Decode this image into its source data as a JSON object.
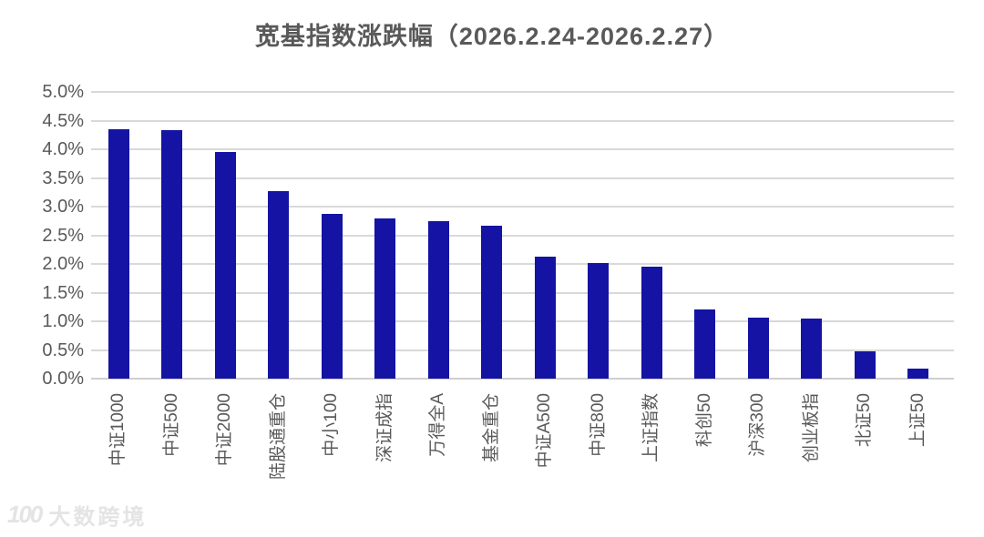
{
  "title": "宽基指数涨跌幅（2026.2.24-2026.2.27）",
  "watermark": {
    "logo_text": "100",
    "text": "大数跨境"
  },
  "colors": {
    "bar": "#1413a3",
    "gridline": "#d9d9d9",
    "axis_text": "#595959",
    "title_text": "#595959",
    "watermark_text": "#e4e4e4",
    "background": "#ffffff"
  },
  "chart_data": {
    "type": "bar",
    "title": "宽基指数涨跌幅（2026.2.24-2026.2.27）",
    "xlabel": "",
    "ylabel": "",
    "unit": "%",
    "categories": [
      "中证1000",
      "中证500",
      "中证2000",
      "陆股通重仓",
      "中小100",
      "深证成指",
      "万得全A",
      "基金重仓",
      "中证A500",
      "中证800",
      "上证指数",
      "科创50",
      "沪深300",
      "创业板指",
      "北证50",
      "上证50"
    ],
    "values": [
      4.35,
      4.33,
      3.95,
      3.27,
      2.87,
      2.8,
      2.75,
      2.66,
      2.12,
      2.02,
      1.96,
      1.2,
      1.07,
      1.04,
      0.48,
      0.17
    ],
    "ylim": [
      0,
      5
    ],
    "ytick_values": [
      0,
      0.5,
      1.0,
      1.5,
      2.0,
      2.5,
      3.0,
      3.5,
      4.0,
      4.5,
      5.0
    ],
    "ytick_labels": [
      "0.0%",
      "0.5%",
      "1.0%",
      "1.5%",
      "2.0%",
      "2.5%",
      "3.0%",
      "3.5%",
      "4.0%",
      "4.5%",
      "5.0%"
    ],
    "grid": true,
    "legend_position": "none",
    "bar_color": "#1413a3",
    "x_label_rotation_deg": -90
  }
}
